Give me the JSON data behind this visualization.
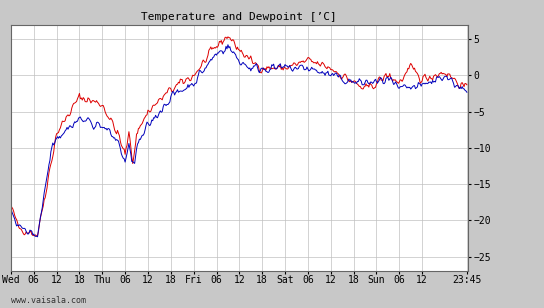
{
  "title": "Temperature and Dewpoint [’C]",
  "bg_color": "#c8c8c8",
  "plot_bg_color": "#ffffff",
  "grid_color": "#c0c0c0",
  "temp_color": "#dd0000",
  "dewp_color": "#0000bb",
  "line_width": 0.7,
  "ylim": [
    -27,
    7
  ],
  "yticks": [
    -25,
    -20,
    -15,
    -10,
    -5,
    0,
    5
  ],
  "watermark": "www.vaisala.com",
  "x_tick_labels": [
    "Wed",
    "06",
    "12",
    "18",
    "Thu",
    "06",
    "12",
    "18",
    "Fri",
    "06",
    "12",
    "18",
    "Sat",
    "06",
    "12",
    "18",
    "Sun",
    "06",
    "12",
    "23:45"
  ],
  "x_tick_positions": [
    0,
    6,
    12,
    18,
    24,
    30,
    36,
    42,
    48,
    54,
    60,
    66,
    72,
    78,
    84,
    90,
    96,
    102,
    108,
    119.75
  ]
}
